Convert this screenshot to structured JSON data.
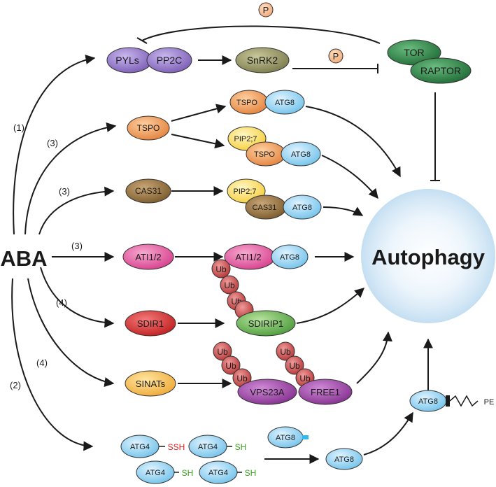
{
  "labels": {
    "aba": "ABA",
    "autophagy": "Autophagy",
    "path1": "(1)",
    "path2": "(2)",
    "path3a": "(3)",
    "path3b": "(3)",
    "path3c": "(3)",
    "path4a": "(4)",
    "path4b": "(4)",
    "phospho": "P",
    "pe": "PE",
    "ssh": "SSH",
    "sh": "SH"
  },
  "proteins": {
    "pyls": "PYLs",
    "pp2c": "PP2C",
    "snrk2": "SnRK2",
    "tor": "TOR",
    "raptor": "RAPTOR",
    "tspo": "TSPO",
    "atg8": "ATG8",
    "pip27": "PIP2;7",
    "cas31": "CAS31",
    "ati12": "ATI1/2",
    "sdir1": "SDIR1",
    "sdirip1": "SDIRIP1",
    "ub": "Ub",
    "sinats": "SINATs",
    "vps23a": "VPS23A",
    "free1": "FREE1",
    "atg4": "ATG4"
  },
  "colors": {
    "purple": "#8d6fc0",
    "olive": "#8a8a58",
    "darkgreen": "#2f7d45",
    "orange": "#ef9a55",
    "blue": "#8fd0f0",
    "yellow": "#ffe270",
    "brown": "#8b6a3c",
    "pink": "#e0509a",
    "red": "#d02828",
    "green": "#5ea84a",
    "ubred": "#c84040",
    "sinat": "#f0b040",
    "violet": "#8f3a9a",
    "ssh": "#e02020",
    "sh": "#3aa020",
    "tag": "#34b8e8"
  }
}
